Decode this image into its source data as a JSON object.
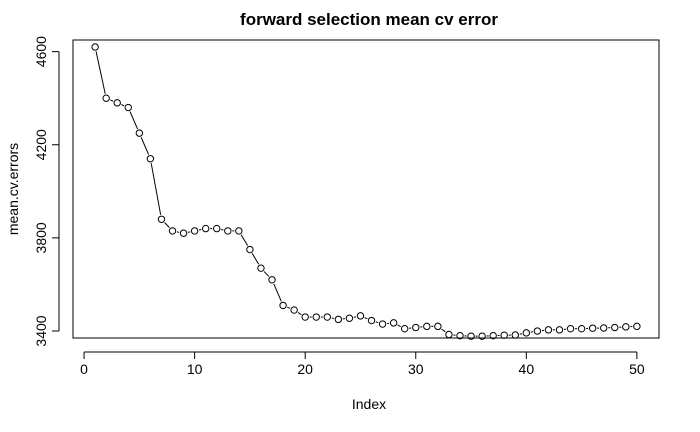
{
  "chart_data": {
    "type": "line",
    "title": "forward selection mean cv error",
    "xlabel": "Index",
    "ylabel": "mean.cv.errors",
    "xlim": [
      -1,
      52
    ],
    "ylim": [
      3370,
      4650
    ],
    "xticks": [
      0,
      10,
      20,
      30,
      40,
      50
    ],
    "yticks": [
      3400,
      3800,
      4200,
      4600
    ],
    "grid": false,
    "legend": "none",
    "line_style": "b",
    "x": [
      1,
      2,
      3,
      4,
      5,
      6,
      7,
      8,
      9,
      10,
      11,
      12,
      13,
      14,
      15,
      16,
      17,
      18,
      19,
      20,
      21,
      22,
      23,
      24,
      25,
      26,
      27,
      28,
      29,
      30,
      31,
      32,
      33,
      34,
      35,
      36,
      37,
      38,
      39,
      40,
      41,
      42,
      43,
      44,
      45,
      46,
      47,
      48,
      49,
      50
    ],
    "values": [
      4620,
      4400,
      4380,
      4360,
      4250,
      4140,
      3880,
      3830,
      3820,
      3830,
      3840,
      3840,
      3830,
      3830,
      3750,
      3670,
      3620,
      3510,
      3490,
      3460,
      3460,
      3460,
      3450,
      3455,
      3465,
      3445,
      3430,
      3435,
      3410,
      3415,
      3420,
      3420,
      3385,
      3380,
      3378,
      3378,
      3380,
      3382,
      3383,
      3392,
      3400,
      3405,
      3405,
      3410,
      3410,
      3412,
      3413,
      3415,
      3418,
      3420
    ]
  }
}
